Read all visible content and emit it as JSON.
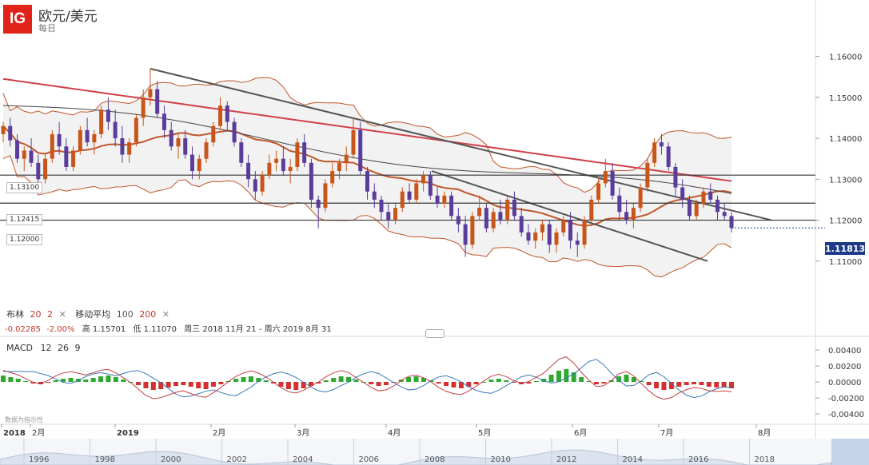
{
  "header": {
    "logo": "IG",
    "title": "欧元/美元",
    "subtitle": "每日"
  },
  "indicators": {
    "bollinger": {
      "label": "布林",
      "period": "20",
      "dev": "2"
    },
    "moving_average": {
      "label": "移动平均",
      "period": "100",
      "period2": "200"
    },
    "close_icon": "close-icon"
  },
  "stats": {
    "change": "-0.02285",
    "change_pct": "-2.00%",
    "high_label": "高",
    "high": "1.15701",
    "low_label": "低",
    "low": "1.11070",
    "range": "周三 2018 11月 21 - 周六 2019 8月 31"
  },
  "price_tag": "1.11813",
  "horizontal_lines": [
    {
      "label": "1.13100",
      "value": 1.131
    },
    {
      "label": "1.12415",
      "value": 1.12415
    },
    {
      "label": "1.12000",
      "value": 1.12
    }
  ],
  "macd": {
    "label": "MACD",
    "fast": "12",
    "slow": "26",
    "signal": "9"
  },
  "watermark": "数据为指示性",
  "time_axis": {
    "labels": [
      "2018",
      "2月",
      "2019",
      "2月",
      "3月",
      "4月",
      "5月",
      "6月",
      "7月",
      "8月"
    ]
  },
  "navigator": {
    "years": [
      "1996",
      "1998",
      "2000",
      "2002",
      "2004",
      "2006",
      "2008",
      "2010",
      "2012",
      "2014",
      "2016",
      "2018"
    ]
  },
  "colors": {
    "up": "#c8561a",
    "down": "#5a3d9a",
    "ma200": "#d0404a",
    "ma100": "#444444",
    "bb": "#c0562a",
    "macd_pos": "#2fa82f",
    "macd_neg": "#d43030",
    "macd_line": "#c04040",
    "signal_line": "#3a7ab8",
    "tag": "#1e3b8a"
  },
  "chart_data": [
    {
      "type": "candlestick",
      "x": [
        "2018-12",
        "2019-01",
        "2019-02",
        "2019-03",
        "2019-04",
        "2019-05",
        "2019-06",
        "2019-07",
        "2019-08"
      ],
      "ylim": [
        1.1,
        1.165
      ],
      "yticks": [
        "1.16000",
        "1.15000",
        "1.14000",
        "1.13000",
        "1.12000",
        "1.11000"
      ],
      "series": [
        {
          "type": "candles",
          "values": [
            [
              1.141,
              1.144,
              1.139,
              1.143
            ],
            [
              1.143,
              1.145,
              1.138,
              1.1395
            ],
            [
              1.1395,
              1.141,
              1.134,
              1.135
            ],
            [
              1.135,
              1.138,
              1.132,
              1.137
            ],
            [
              1.137,
              1.14,
              1.133,
              1.134
            ],
            [
              1.134,
              1.136,
              1.128,
              1.13
            ],
            [
              1.13,
              1.136,
              1.129,
              1.135
            ],
            [
              1.135,
              1.142,
              1.134,
              1.141
            ],
            [
              1.141,
              1.144,
              1.136,
              1.138
            ],
            [
              1.138,
              1.14,
              1.132,
              1.133
            ],
            [
              1.133,
              1.138,
              1.132,
              1.137
            ],
            [
              1.137,
              1.143,
              1.136,
              1.142
            ],
            [
              1.142,
              1.145,
              1.138,
              1.139
            ],
            [
              1.139,
              1.142,
              1.136,
              1.141
            ],
            [
              1.141,
              1.148,
              1.14,
              1.147
            ],
            [
              1.147,
              1.15,
              1.142,
              1.144
            ],
            [
              1.144,
              1.147,
              1.138,
              1.14
            ],
            [
              1.14,
              1.143,
              1.134,
              1.136
            ],
            [
              1.136,
              1.14,
              1.134,
              1.139
            ],
            [
              1.139,
              1.146,
              1.138,
              1.145
            ],
            [
              1.145,
              1.152,
              1.143,
              1.15
            ],
            [
              1.15,
              1.157,
              1.148,
              1.152
            ],
            [
              1.152,
              1.154,
              1.145,
              1.146
            ],
            [
              1.146,
              1.148,
              1.14,
              1.142
            ],
            [
              1.142,
              1.144,
              1.137,
              1.138
            ],
            [
              1.138,
              1.141,
              1.135,
              1.14
            ],
            [
              1.14,
              1.142,
              1.135,
              1.136
            ],
            [
              1.136,
              1.138,
              1.13,
              1.132
            ],
            [
              1.132,
              1.136,
              1.13,
              1.135
            ],
            [
              1.135,
              1.14,
              1.134,
              1.139
            ],
            [
              1.139,
              1.144,
              1.138,
              1.143
            ],
            [
              1.143,
              1.15,
              1.142,
              1.148
            ],
            [
              1.148,
              1.149,
              1.142,
              1.144
            ],
            [
              1.144,
              1.145,
              1.138,
              1.139
            ],
            [
              1.139,
              1.14,
              1.133,
              1.134
            ],
            [
              1.134,
              1.136,
              1.128,
              1.13
            ],
            [
              1.13,
              1.132,
              1.125,
              1.127
            ],
            [
              1.127,
              1.132,
              1.126,
              1.131
            ],
            [
              1.131,
              1.136,
              1.13,
              1.134
            ],
            [
              1.134,
              1.137,
              1.132,
              1.135
            ],
            [
              1.135,
              1.138,
              1.131,
              1.132
            ],
            [
              1.132,
              1.135,
              1.129,
              1.133
            ],
            [
              1.133,
              1.14,
              1.132,
              1.139
            ],
            [
              1.139,
              1.141,
              1.133,
              1.134
            ],
            [
              1.134,
              1.135,
              1.123,
              1.125
            ],
            [
              1.125,
              1.126,
              1.118,
              1.123
            ],
            [
              1.123,
              1.13,
              1.122,
              1.129
            ],
            [
              1.129,
              1.134,
              1.128,
              1.132
            ],
            [
              1.132,
              1.135,
              1.13,
              1.134
            ],
            [
              1.134,
              1.138,
              1.132,
              1.136
            ],
            [
              1.136,
              1.145,
              1.135,
              1.142
            ],
            [
              1.142,
              1.144,
              1.131,
              1.132
            ],
            [
              1.132,
              1.133,
              1.125,
              1.127
            ],
            [
              1.127,
              1.129,
              1.123,
              1.125
            ],
            [
              1.125,
              1.126,
              1.12,
              1.122
            ],
            [
              1.122,
              1.124,
              1.118,
              1.12
            ],
            [
              1.12,
              1.124,
              1.119,
              1.123
            ],
            [
              1.123,
              1.128,
              1.122,
              1.127
            ],
            [
              1.127,
              1.129,
              1.124,
              1.125
            ],
            [
              1.125,
              1.13,
              1.124,
              1.129
            ],
            [
              1.129,
              1.132,
              1.127,
              1.131
            ],
            [
              1.131,
              1.132,
              1.125,
              1.126
            ],
            [
              1.126,
              1.128,
              1.123,
              1.124
            ],
            [
              1.124,
              1.127,
              1.123,
              1.126
            ],
            [
              1.126,
              1.127,
              1.12,
              1.121
            ],
            [
              1.121,
              1.123,
              1.117,
              1.119
            ],
            [
              1.119,
              1.121,
              1.111,
              1.114
            ],
            [
              1.114,
              1.122,
              1.113,
              1.121
            ],
            [
              1.121,
              1.126,
              1.12,
              1.123
            ],
            [
              1.123,
              1.124,
              1.117,
              1.118
            ],
            [
              1.118,
              1.123,
              1.117,
              1.122
            ],
            [
              1.122,
              1.125,
              1.119,
              1.12
            ],
            [
              1.12,
              1.126,
              1.119,
              1.125
            ],
            [
              1.125,
              1.127,
              1.12,
              1.121
            ],
            [
              1.121,
              1.123,
              1.116,
              1.117
            ],
            [
              1.117,
              1.119,
              1.114,
              1.115
            ],
            [
              1.115,
              1.118,
              1.113,
              1.117
            ],
            [
              1.117,
              1.12,
              1.115,
              1.119
            ],
            [
              1.119,
              1.12,
              1.112,
              1.114
            ],
            [
              1.114,
              1.118,
              1.112,
              1.117
            ],
            [
              1.117,
              1.121,
              1.116,
              1.12
            ],
            [
              1.12,
              1.122,
              1.113,
              1.115
            ],
            [
              1.115,
              1.117,
              1.111,
              1.114
            ],
            [
              1.114,
              1.121,
              1.113,
              1.12
            ],
            [
              1.12,
              1.126,
              1.119,
              1.125
            ],
            [
              1.125,
              1.13,
              1.124,
              1.129
            ],
            [
              1.129,
              1.135,
              1.128,
              1.132
            ],
            [
              1.132,
              1.134,
              1.125,
              1.126
            ],
            [
              1.126,
              1.128,
              1.12,
              1.122
            ],
            [
              1.122,
              1.125,
              1.119,
              1.12
            ],
            [
              1.12,
              1.124,
              1.118,
              1.123
            ],
            [
              1.123,
              1.129,
              1.122,
              1.128
            ],
            [
              1.128,
              1.135,
              1.127,
              1.134
            ],
            [
              1.134,
              1.14,
              1.133,
              1.139
            ],
            [
              1.139,
              1.141,
              1.136,
              1.138
            ],
            [
              1.138,
              1.139,
              1.132,
              1.133
            ],
            [
              1.133,
              1.134,
              1.126,
              1.128
            ],
            [
              1.128,
              1.13,
              1.123,
              1.125
            ],
            [
              1.125,
              1.126,
              1.12,
              1.121
            ],
            [
              1.121,
              1.125,
              1.12,
              1.124
            ],
            [
              1.124,
              1.128,
              1.123,
              1.127
            ],
            [
              1.127,
              1.129,
              1.124,
              1.125
            ],
            [
              1.125,
              1.126,
              1.12,
              1.122
            ],
            [
              1.122,
              1.124,
              1.12,
              1.121
            ],
            [
              1.121,
              1.122,
              1.117,
              1.1181
            ]
          ]
        }
      ]
    },
    {
      "type": "bar",
      "ylim": [
        -0.005,
        0.005
      ],
      "yticks": [
        "0.00400",
        "0.00200",
        "0.00000",
        "-0.00200",
        "-0.00400"
      ],
      "series": [
        {
          "name": "MACD",
          "values": [
            0.0008,
            0.0006,
            0.0004,
            0.0001,
            -0.0002,
            -0.0003,
            -0.0001,
            0.0002,
            0.0004,
            0.0005,
            0.0004,
            0.0003,
            0.0005,
            0.0007,
            0.0008,
            0.0006,
            0.0003,
            0.0,
            -0.0004,
            -0.0008,
            -0.001,
            -0.0009,
            -0.0007,
            -0.0005,
            -0.0004,
            -0.0006,
            -0.0008,
            -0.0009,
            -0.0006,
            -0.0003,
            0.0001,
            0.0004,
            0.0006,
            0.0007,
            0.0005,
            0.0002,
            -0.0002,
            -0.0006,
            -0.0009,
            -0.001,
            -0.0008,
            -0.0005,
            -0.0002,
            0.0002,
            0.0005,
            0.0007,
            0.0006,
            0.0003,
            0.0,
            -0.0003,
            -0.0005,
            -0.0004,
            -0.0001,
            0.0003,
            0.0006,
            0.0007,
            0.0005,
            0.0002,
            -0.0002,
            -0.0005,
            -0.0007,
            -0.0008,
            -0.0006,
            -0.0003,
            0.0,
            0.0003,
            0.0004,
            0.0002,
            -0.0001,
            -0.0003,
            -0.0002,
            0.0001,
            0.0004,
            0.0009,
            0.0014,
            0.0016,
            0.0012,
            0.0006,
            0.0001,
            -0.0003,
            -0.0002,
            0.0002,
            0.0007,
            0.0009,
            0.0006,
            0.0001,
            -0.0004,
            -0.0008,
            -0.001,
            -0.0009,
            -0.0006,
            -0.0004,
            -0.0003,
            -0.0004,
            -0.0006,
            -0.0007,
            -0.0007,
            -0.0008
          ]
        }
      ]
    }
  ]
}
